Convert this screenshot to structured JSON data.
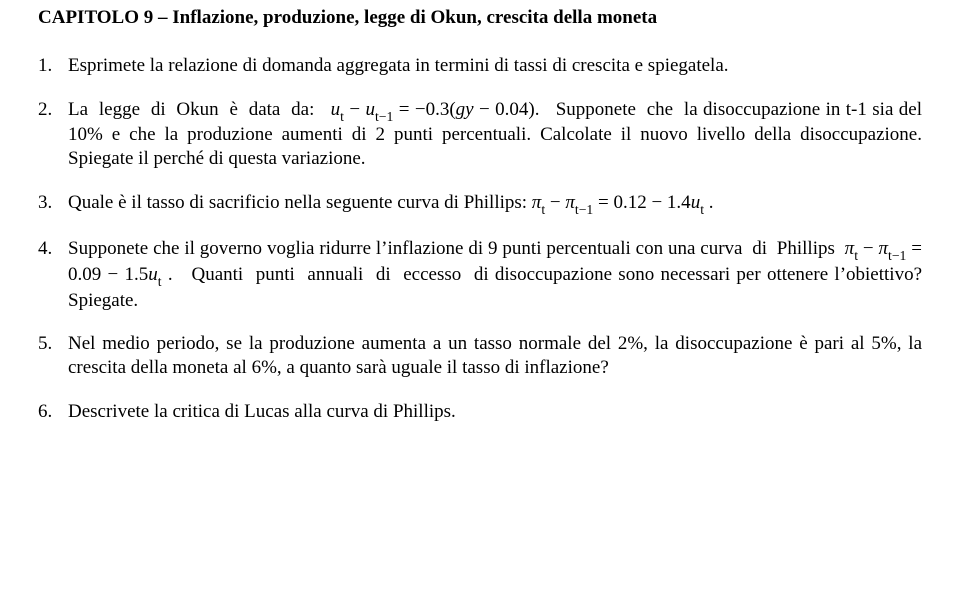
{
  "title": "CAPITOLO 9 – Inflazione, produzione, legge di Okun, crescita della moneta",
  "items": [
    {
      "num": "1.",
      "html": "Esprimete la relazione di domanda aggregata in termini di tassi di crescita e spiegatela."
    },
    {
      "num": "2.",
      "html": "La&nbsp;&nbsp;legge&nbsp;&nbsp;di&nbsp;&nbsp;Okun&nbsp;&nbsp;è&nbsp;&nbsp;data&nbsp;&nbsp;da:&nbsp;&nbsp; <span class='formula'><span class='it'>u</span><span class='sub'>t</span> − <span class='it'>u</span><span class='sub'>t−1</span> = −0.3(<span class='it'>gy</span> − 0.04)</span>.&nbsp;&nbsp; Supponete&nbsp;&nbsp;che&nbsp;&nbsp;la disoccupazione in t-1 sia del 10% e che la produzione aumenti di 2 punti percentuali. Calcolate il nuovo livello della disoccupazione. Spiegate il perché di questa variazione."
    },
    {
      "num": "3.",
      "html": "Quale è il tasso di sacrificio nella seguente curva di Phillips: <span class='formula'><span class='it'>π</span><span class='sub'>t</span> − <span class='it'>π</span><span class='sub'>t−1</span> = 0.12 − 1.4<span class='it'>u</span><span class='sub'>t</span></span> ."
    },
    {
      "num": "4.",
      "html": "Supponete che il governo voglia ridurre l’inflazione di 9 punti percentuali con una curva&nbsp; di&nbsp; Phillips&nbsp; <span class='formula'><span class='it'>π</span><span class='sub'>t</span> − <span class='it'>π</span><span class='sub'>t−1</span> = 0.09 − 1.5<span class='it'>u</span><span class='sub'>t</span></span> .&nbsp;&nbsp; Quanti&nbsp; punti&nbsp; annuali&nbsp; di&nbsp; eccesso&nbsp; di disoccupazione sono necessari per ottenere l’obiettivo? Spiegate."
    },
    {
      "num": "5.",
      "html": "Nel medio periodo, se la produzione aumenta a un tasso normale del 2%, la disoccupazione è pari al 5%, la crescita della moneta al 6%, a quanto sarà uguale il tasso di inflazione?"
    },
    {
      "num": "6.",
      "html": "Descrivete la critica di Lucas alla curva di Phillips."
    }
  ]
}
